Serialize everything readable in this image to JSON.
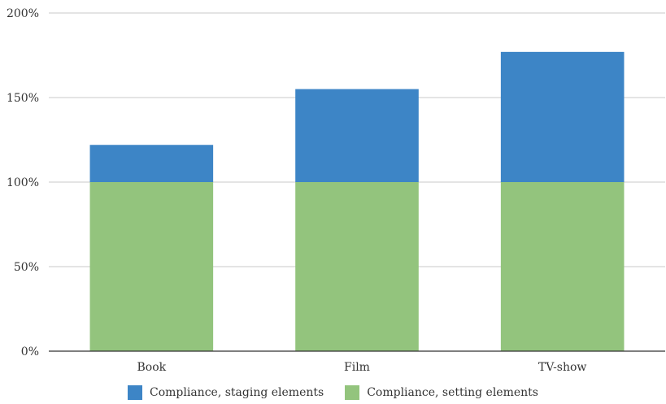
{
  "chart_data": {
    "type": "bar",
    "stacked": true,
    "categories": [
      "Book",
      "Film",
      "TV-show"
    ],
    "series": [
      {
        "name": "Compliance, setting elements",
        "values": [
          100,
          100,
          100
        ],
        "color": "#93c47d"
      },
      {
        "name": "Compliance, staging elements",
        "values": [
          22,
          55,
          77
        ],
        "color": "#3d85c6"
      }
    ],
    "ylim": [
      0,
      200
    ],
    "yticks": [
      "0%",
      "50%",
      "100%",
      "150%",
      "200%"
    ],
    "ytick_values": [
      0,
      50,
      100,
      150,
      200
    ],
    "grid": true,
    "legend_position": "bottom",
    "legend_order": [
      1,
      0
    ],
    "title": "",
    "xlabel": "",
    "ylabel": ""
  }
}
